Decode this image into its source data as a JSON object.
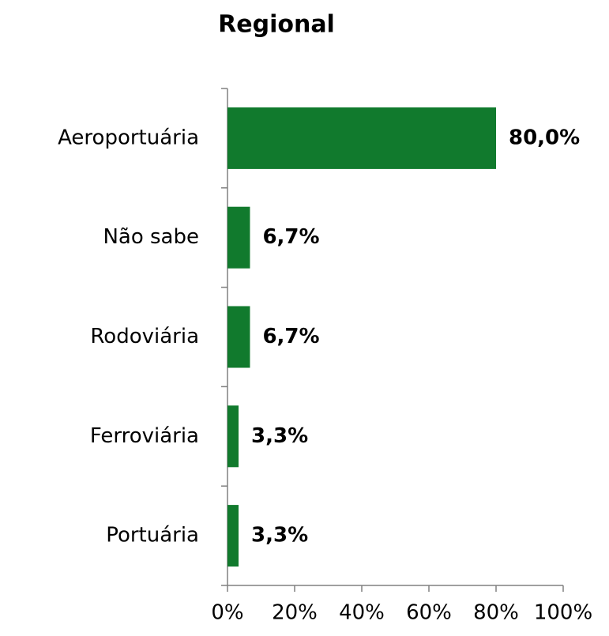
{
  "chart_data": {
    "type": "bar",
    "orientation": "horizontal",
    "title": "Regional",
    "categories": [
      "Aeroportuária",
      "Não sabe",
      "Rodoviária",
      "Ferroviária",
      "Portuária"
    ],
    "values": [
      80,
      6.7,
      6.7,
      3.3,
      3.3
    ],
    "value_labels": [
      "80,0%",
      "6,7%",
      "6,7%",
      "3,3%",
      "3,3%"
    ],
    "color": "#117a2d",
    "xlim": [
      0,
      100
    ],
    "xticks": [
      {
        "value": 0,
        "label": "0%"
      },
      {
        "value": 20,
        "label": "20%"
      },
      {
        "value": 40,
        "label": "40%"
      },
      {
        "value": 60,
        "label": "60%"
      },
      {
        "value": 80,
        "label": "80%"
      },
      {
        "value": 100,
        "label": "100%"
      }
    ],
    "grid": false
  }
}
